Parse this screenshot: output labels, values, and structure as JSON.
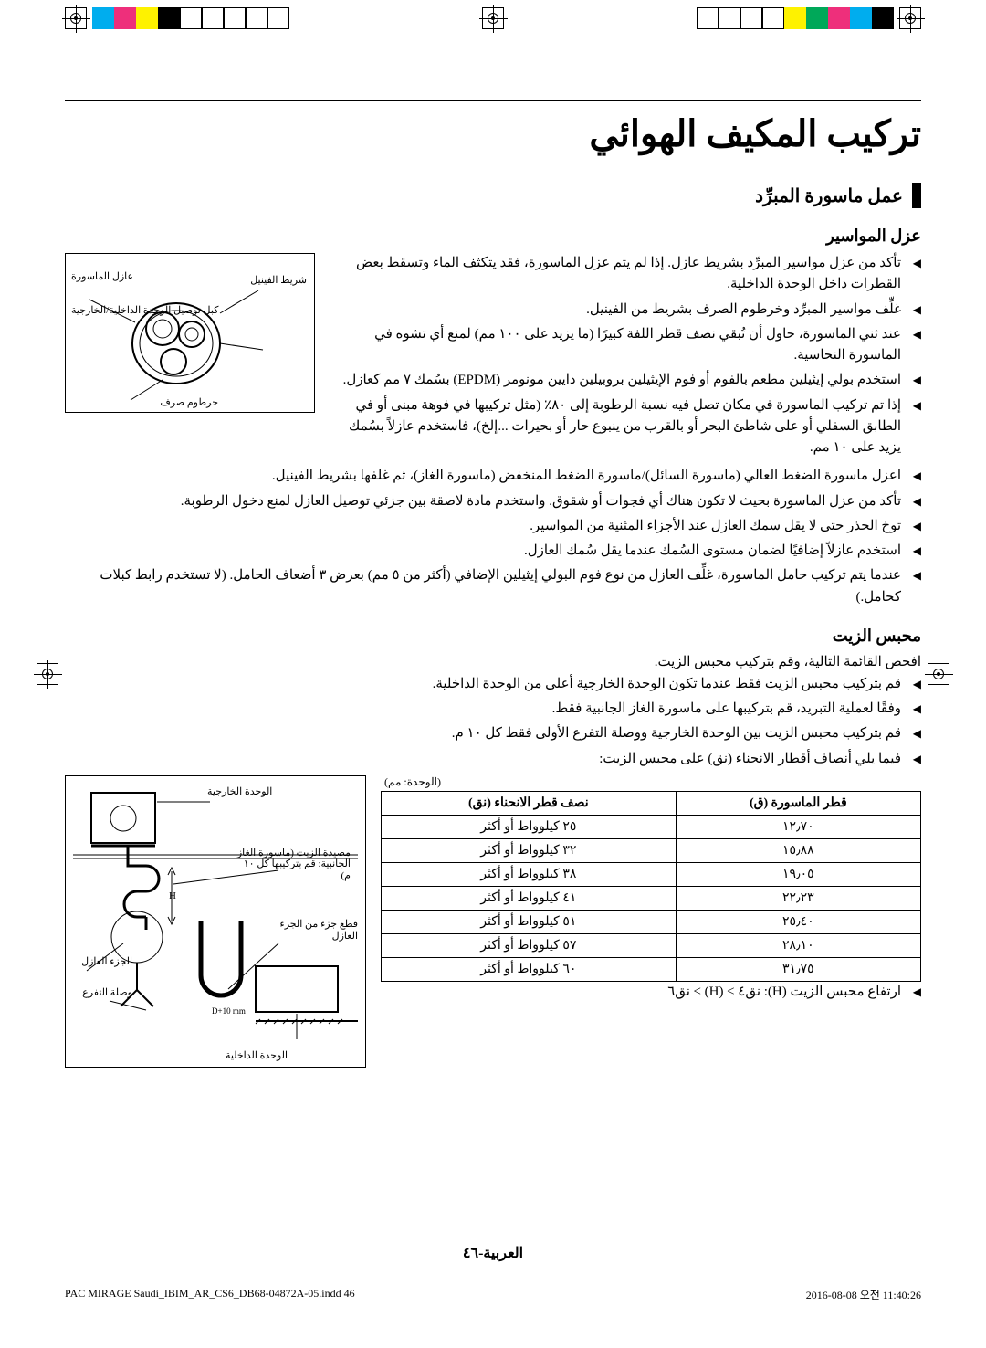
{
  "registration": {
    "colorbar_left": [
      "#00adee",
      "#ee2f7b",
      "#fef200",
      "#000000",
      "#ffffff",
      "#ffffff",
      "#ffffff",
      "#ffffff",
      "#ffffff"
    ],
    "colorbar_right": [
      "#ffffff",
      "#ffffff",
      "#ffffff",
      "#ffffff",
      "#fef200",
      "#00a859",
      "#ee2f7b",
      "#00adee",
      "#000000"
    ]
  },
  "title": "تركيب المكيف الهوائي",
  "section1": {
    "heading": "عمل ماسورة المبرِّد",
    "sub_a": "عزل المواسير",
    "bullets_a1": [
      "تأكد من عزل مواسير المبرِّد بشريط عازل. إذا لم يتم عزل الماسورة، فقد يتكثف الماء وتسقط بعض القطرات داخل الوحدة الداخلية.",
      "غلِّف مواسير المبرِّد وخرطوم الصرف بشريط من الفينيل.",
      "عند ثني الماسورة، حاول أن تُبقي نصف قطر اللفة كبيرًا (ما يزيد على ١٠٠ مم) لمنع أي تشوه في الماسورة النحاسية.",
      "استخدم بولي إيثيلين مطعم بالفوم أو فوم الإيثيلين بروبيلين دايين مونومر (EPDM) بسُمك ٧ مم كعازل.",
      "إذا تم تركيب الماسورة في مكان تصل فيه نسبة الرطوبة إلى ٨٠٪ (مثل تركيبها في فوهة مبنى أو في الطابق السفلي أو على شاطئ البحر أو بالقرب من ينبوع حار أو بحيرات ...إلخ)، فاستخدم عازلاً بسُمك يزيد على ١٠ مم."
    ],
    "bullets_a2": [
      "اعزل ماسورة الضغط العالي (ماسورة السائل)/ماسورة الضغط المنخفض (ماسورة الغاز)، ثم غلفها بشريط الفينيل.",
      "تأكد من عزل الماسورة بحيث لا تكون هناك أي فجوات أو شقوق. واستخدم مادة لاصقة بين جزئي توصيل العازل لمنع دخول الرطوبة.",
      "توخ الحذر حتى لا يقل سمك العازل عند الأجزاء المثنية من المواسير.",
      "استخدم عازلاً إضافيًا لضمان مستوى السُمك عندما يقل سُمك العازل.",
      "عندما يتم تركيب حامل الماسورة، غلِّف العازل من نوع فوم البولي إيثيلين الإضافي (أكثر من ٥ مم) بعرض ٣ أضعاف الحامل. (لا تستخدم رابط كبلات كحامل.)"
    ],
    "fig_a_labels": {
      "tape": "شريط الفينيل",
      "insul": "عازل الماسورة",
      "cable": "كبل توصيل الوحدة الداخلية/الخارجية",
      "drain": "خرطوم صرف"
    }
  },
  "section2": {
    "sub": "محبس الزيت",
    "intro": "افحص القائمة التالية، وقم بتركيب محبس الزيت.",
    "bullets": [
      "قم بتركيب محبس الزيت فقط عندما تكون الوحدة الخارجية أعلى من الوحدة الداخلية.",
      "وفقًا لعملية التبريد، قم بتركيبها على ماسورة الغاز الجانبية فقط.",
      "قم بتركيب محبس الزيت بين الوحدة الخارجية ووصلة التفرع الأولى فقط كل ١٠ م.",
      "فيما يلي أنصاف أقطار الانحناء (نق) على محبس الزيت:"
    ],
    "table": {
      "unit": "(الوحدة: مم)",
      "head": [
        "قطر الماسورة (ق)",
        "نصف قطر الانحناء (نق)"
      ],
      "rows": [
        [
          "١٢٫٧٠",
          "٢٥ كيلوواط أو أكثر"
        ],
        [
          "١٥٫٨٨",
          "٣٢ كيلوواط أو أكثر"
        ],
        [
          "١٩٫٠٥",
          "٣٨ كيلوواط أو أكثر"
        ],
        [
          "٢٢٫٢٣",
          "٤١ كيلوواط أو أكثر"
        ],
        [
          "٢٥٫٤٠",
          "٥١ كيلوواط أو أكثر"
        ],
        [
          "٢٨٫١٠",
          "٥٧ كيلوواط أو أكثر"
        ],
        [
          "٣١٫٧٥",
          "٦٠ كيلوواط أو أكثر"
        ]
      ]
    },
    "after": "ارتفاع محبس الزيت (H): نق٤ ≥ (H) ≥ نق٦",
    "fig_b_labels": {
      "outdoor": "الوحدة الخارجية",
      "indoor": "الوحدة الداخلية",
      "trap": "مصيدة الزيت (ماسورة الغاز الجانبية: قم بتركيبها كل ١٠ م)",
      "insul": "الجزء العازل",
      "cut": "قطع جزء من الجزء العازل",
      "branch": "وصلة التفرع"
    }
  },
  "footer": {
    "page": "العربية-٤٦",
    "file": "PAC MIRAGE Saudi_IBIM_AR_CS6_DB68-04872A-05.indd   46",
    "stamp": "2016-08-08   오전 11:40:26"
  }
}
